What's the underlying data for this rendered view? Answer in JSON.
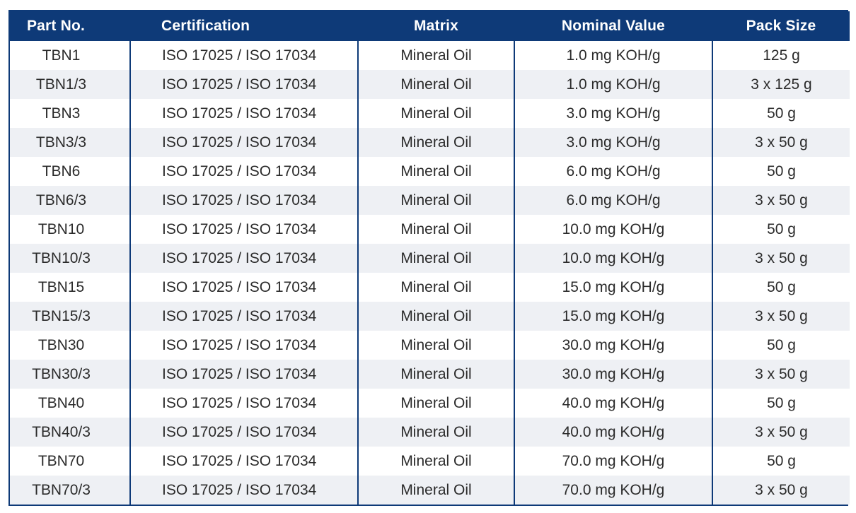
{
  "table": {
    "headers": {
      "part_no": "Part No.",
      "certification": "Certification",
      "matrix": "Matrix",
      "nominal_value": "Nominal Value",
      "pack_size": "Pack Size"
    },
    "rows": [
      {
        "part_no": "TBN1",
        "certification": "ISO 17025 / ISO 17034",
        "matrix": "Mineral Oil",
        "nominal_value": "1.0 mg KOH/g",
        "pack_size": "125 g"
      },
      {
        "part_no": "TBN1/3",
        "certification": "ISO 17025 / ISO 17034",
        "matrix": "Mineral Oil",
        "nominal_value": "1.0 mg KOH/g",
        "pack_size": "3 x 125 g"
      },
      {
        "part_no": "TBN3",
        "certification": "ISO 17025 / ISO 17034",
        "matrix": "Mineral Oil",
        "nominal_value": "3.0 mg KOH/g",
        "pack_size": "50 g"
      },
      {
        "part_no": "TBN3/3",
        "certification": "ISO 17025 / ISO 17034",
        "matrix": "Mineral Oil",
        "nominal_value": "3.0 mg KOH/g",
        "pack_size": "3 x 50 g"
      },
      {
        "part_no": "TBN6",
        "certification": "ISO 17025 / ISO 17034",
        "matrix": "Mineral Oil",
        "nominal_value": "6.0 mg KOH/g",
        "pack_size": "50 g"
      },
      {
        "part_no": "TBN6/3",
        "certification": "ISO 17025 / ISO 17034",
        "matrix": "Mineral Oil",
        "nominal_value": "6.0 mg KOH/g",
        "pack_size": "3 x 50 g"
      },
      {
        "part_no": "TBN10",
        "certification": "ISO 17025 / ISO 17034",
        "matrix": "Mineral Oil",
        "nominal_value": "10.0 mg KOH/g",
        "pack_size": "50 g"
      },
      {
        "part_no": "TBN10/3",
        "certification": "ISO 17025 / ISO 17034",
        "matrix": "Mineral Oil",
        "nominal_value": "10.0 mg KOH/g",
        "pack_size": "3 x 50 g"
      },
      {
        "part_no": "TBN15",
        "certification": "ISO 17025 / ISO 17034",
        "matrix": "Mineral Oil",
        "nominal_value": "15.0 mg KOH/g",
        "pack_size": "50 g"
      },
      {
        "part_no": "TBN15/3",
        "certification": "ISO 17025 / ISO 17034",
        "matrix": "Mineral Oil",
        "nominal_value": "15.0 mg KOH/g",
        "pack_size": "3 x 50 g"
      },
      {
        "part_no": "TBN30",
        "certification": "ISO 17025 / ISO 17034",
        "matrix": "Mineral Oil",
        "nominal_value": "30.0 mg KOH/g",
        "pack_size": "50 g"
      },
      {
        "part_no": "TBN30/3",
        "certification": "ISO 17025 / ISO 17034",
        "matrix": "Mineral Oil",
        "nominal_value": "30.0 mg KOH/g",
        "pack_size": "3 x 50 g"
      },
      {
        "part_no": "TBN40",
        "certification": "ISO 17025 / ISO 17034",
        "matrix": "Mineral Oil",
        "nominal_value": "40.0 mg KOH/g",
        "pack_size": "50 g"
      },
      {
        "part_no": "TBN40/3",
        "certification": "ISO 17025 / ISO 17034",
        "matrix": "Mineral Oil",
        "nominal_value": "40.0 mg KOH/g",
        "pack_size": "3 x 50 g"
      },
      {
        "part_no": "TBN70",
        "certification": "ISO 17025 / ISO 17034",
        "matrix": "Mineral Oil",
        "nominal_value": "70.0 mg KOH/g",
        "pack_size": "50 g"
      },
      {
        "part_no": "TBN70/3",
        "certification": "ISO 17025 / ISO 17034",
        "matrix": "Mineral Oil",
        "nominal_value": "70.0 mg KOH/g",
        "pack_size": "3 x 50 g"
      }
    ]
  },
  "colors": {
    "header_bg": "#0e3a78",
    "header_text": "#ffffff",
    "row_alt_bg": "#eef0f4",
    "border": "#0e3a78"
  }
}
